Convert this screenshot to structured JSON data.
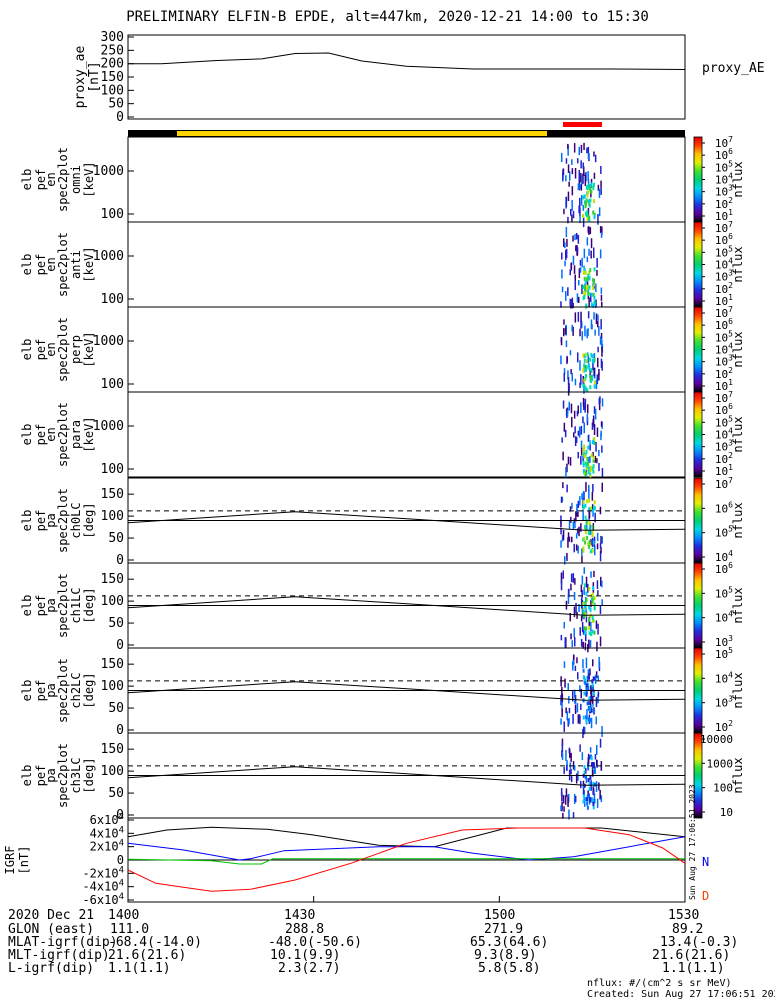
{
  "title": "PRELIMINARY ELFIN-B EPDE, alt=447km, 2020-12-21 14:00 to 15:30",
  "colors": {
    "state_bar_dark": "#000000",
    "state_bar_science": "#ffd400",
    "science_zone_marker": "#ff0000",
    "geo_x": "#000000",
    "geo_y": "#0000ff",
    "geo_z": "#ff0000",
    "geo_total": "#00c000"
  },
  "panels": [
    {
      "id": "proxy_ae",
      "ylabel": [
        "proxy_ae",
        "[nT]"
      ],
      "right_label": "proxy_AE"
    },
    {
      "id": "omni",
      "ylabel": [
        "elb",
        "pef",
        "en",
        "spec2plot",
        "omni",
        "[keV]"
      ],
      "colorbar_label": "nflux"
    },
    {
      "id": "anti",
      "ylabel": [
        "elb",
        "pef",
        "en",
        "spec2plot",
        "anti",
        "[keV]"
      ],
      "colorbar_label": "nflux"
    },
    {
      "id": "perp",
      "ylabel": [
        "elb",
        "pef",
        "en",
        "spec2plot",
        "perp",
        "[keV]"
      ],
      "colorbar_label": "nflux"
    },
    {
      "id": "para",
      "ylabel": [
        "elb",
        "pef",
        "en",
        "spec2plot",
        "para",
        "[keV]"
      ],
      "colorbar_label": "nflux"
    },
    {
      "id": "ch0LC",
      "ylabel": [
        "elb",
        "pef",
        "pa",
        "spec2plot",
        "ch0LC",
        "[deg]"
      ],
      "colorbar_label": "nflux"
    },
    {
      "id": "ch1LC",
      "ylabel": [
        "elb",
        "pef",
        "pa",
        "spec2plot",
        "ch1LC",
        "[deg]"
      ],
      "colorbar_label": "nflux"
    },
    {
      "id": "ch2LC",
      "ylabel": [
        "elb",
        "pef",
        "pa",
        "spec2plot",
        "ch2LC",
        "[deg]"
      ],
      "colorbar_label": "nflux"
    },
    {
      "id": "ch3LC",
      "ylabel": [
        "elb",
        "pef",
        "pa",
        "spec2plot",
        "ch3LC",
        "[deg]"
      ],
      "colorbar_label": "nflux"
    },
    {
      "id": "igrf",
      "ylabel": [
        "IGRF",
        "[nT]"
      ]
    }
  ],
  "footer": {
    "rows": [
      {
        "label": "2020 Dec 21",
        "values": [
          "1400",
          "1430",
          "1500",
          "1530"
        ]
      },
      {
        "label": "GLON (east)",
        "values": [
          "111.0",
          "288.8",
          "271.9",
          "89.2"
        ]
      },
      {
        "label": "MLAT-igrf(dip)",
        "values": [
          "-68.4(-14.0)",
          "-48.0(-50.6)",
          "65.3(64.6)",
          "13.4(-0.3)"
        ]
      },
      {
        "label": "MLT-igrf(dip)",
        "values": [
          "21.6(21.6)",
          "10.1(9.9)",
          "9.3(8.9)",
          "21.6(21.6)"
        ]
      },
      {
        "label": "L-igrf(dip)",
        "values": [
          "1.1(1.1)",
          "2.3(2.7)",
          "5.8(5.8)",
          "1.1(1.1)"
        ]
      }
    ],
    "units_note": "nflux: #/(cm^2 s sr MeV)",
    "created": "Created: Sun Aug 27 17:06:51 2023",
    "side_stamp": "Sun Aug 27 17:06:51 2023"
  },
  "chart_data": [
    {
      "type": "line",
      "panel": "proxy_ae",
      "ylim": [
        0,
        300
      ],
      "yticks": [
        "300",
        "250",
        "200",
        "150",
        "100",
        "50",
        "0"
      ],
      "series": [
        {
          "x": [
            0,
            0.06,
            0.16,
            0.24,
            0.3,
            0.36,
            0.42,
            0.5,
            0.62,
            0.75,
            0.87,
            1.0
          ],
          "values": [
            200,
            200,
            212,
            218,
            238,
            240,
            210,
            190,
            180,
            180,
            180,
            178
          ]
        }
      ]
    },
    {
      "type": "heatmap",
      "panel": "omni",
      "yscale": "log",
      "yticks": [
        "1000",
        "100"
      ],
      "cbar_ticks": [
        "10^7",
        "10^6",
        "10^5",
        "10^4",
        "10^3",
        "10^2",
        "10^1"
      ]
    },
    {
      "type": "heatmap",
      "panel": "anti",
      "yscale": "log",
      "yticks": [
        "1000",
        "100"
      ],
      "cbar_ticks": [
        "10^7",
        "10^6",
        "10^5",
        "10^4",
        "10^3",
        "10^2",
        "10^1"
      ]
    },
    {
      "type": "heatmap",
      "panel": "perp",
      "yscale": "log",
      "yticks": [
        "1000",
        "100"
      ],
      "cbar_ticks": [
        "10^7",
        "10^6",
        "10^5",
        "10^4",
        "10^3",
        "10^2",
        "10^1"
      ]
    },
    {
      "type": "heatmap",
      "panel": "para",
      "yscale": "log",
      "yticks": [
        "1000",
        "100"
      ],
      "cbar_ticks": [
        "10^7",
        "10^6",
        "10^5",
        "10^4",
        "10^3",
        "10^2",
        "10^1"
      ]
    },
    {
      "type": "heatmap",
      "panel": "ch0LC",
      "ylim": [
        0,
        180
      ],
      "yticks": [
        "150",
        "100",
        "50",
        "0"
      ],
      "cbar_ticks": [
        "10^7",
        "10^6",
        "10^5",
        "10^4"
      ]
    },
    {
      "type": "heatmap",
      "panel": "ch1LC",
      "ylim": [
        0,
        180
      ],
      "yticks": [
        "150",
        "100",
        "50",
        "0"
      ],
      "cbar_ticks": [
        "10^6",
        "10^5",
        "10^4",
        "10^3"
      ]
    },
    {
      "type": "heatmap",
      "panel": "ch2LC",
      "ylim": [
        0,
        180
      ],
      "yticks": [
        "150",
        "100",
        "50",
        "0"
      ],
      "cbar_ticks": [
        "10^5",
        "10^4",
        "10^3",
        "10^2"
      ]
    },
    {
      "type": "heatmap",
      "panel": "ch3LC",
      "ylim": [
        0,
        180
      ],
      "yticks": [
        "150",
        "100",
        "50",
        "0"
      ],
      "cbar_ticks": [
        "10000",
        "1000",
        "100",
        "10"
      ]
    },
    {
      "type": "line",
      "panel": "igrf",
      "ylim": [
        -60000,
        60000
      ],
      "yticks": [
        "6x10^4",
        "4x10^4",
        "2x10^4",
        "0",
        "-2x10^4",
        "-4x10^4",
        "-6x10^4"
      ],
      "legend": [
        "N",
        "D"
      ]
    }
  ]
}
